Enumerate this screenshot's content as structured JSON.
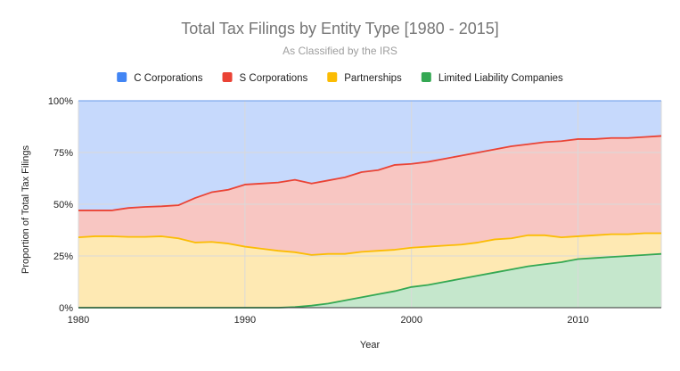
{
  "chart_data": {
    "type": "area",
    "stacked": true,
    "normalized": true,
    "title": "Total Tax Filings by Entity Type [1980 - 2015]",
    "subtitle": "As Classified by the IRS",
    "xlabel": "Year",
    "ylabel": "Proportion of Total Tax Filings",
    "xlim": [
      1980,
      2015
    ],
    "ylim": [
      0,
      1
    ],
    "x_ticks": [
      "1980",
      "1990",
      "2000",
      "2010"
    ],
    "y_ticks": [
      "0%",
      "25%",
      "50%",
      "75%",
      "100%"
    ],
    "legend_position": "top",
    "grid": true,
    "x": [
      1980,
      1981,
      1982,
      1983,
      1984,
      1985,
      1986,
      1987,
      1988,
      1989,
      1990,
      1991,
      1992,
      1993,
      1994,
      1995,
      1996,
      1997,
      1998,
      1999,
      2000,
      2001,
      2002,
      2003,
      2004,
      2005,
      2006,
      2007,
      2008,
      2009,
      2010,
      2011,
      2012,
      2013,
      2014,
      2015
    ],
    "series": [
      {
        "name": "Limited Liability Companies",
        "color": "#34a853",
        "fill": "#c5e7cc",
        "values": [
          0,
          0,
          0,
          0,
          0,
          0,
          0,
          0,
          0,
          0,
          0,
          0,
          0,
          0.003,
          0.01,
          0.02,
          0.035,
          0.05,
          0.065,
          0.08,
          0.1,
          0.11,
          0.125,
          0.14,
          0.155,
          0.17,
          0.185,
          0.2,
          0.21,
          0.22,
          0.235,
          0.24,
          0.245,
          0.25,
          0.255,
          0.26
        ]
      },
      {
        "name": "Partnerships",
        "color": "#fbbc04",
        "fill": "#fee9b3",
        "values": [
          0.34,
          0.345,
          0.345,
          0.342,
          0.342,
          0.345,
          0.335,
          0.315,
          0.318,
          0.31,
          0.295,
          0.285,
          0.275,
          0.265,
          0.245,
          0.24,
          0.225,
          0.22,
          0.21,
          0.2,
          0.19,
          0.185,
          0.175,
          0.165,
          0.16,
          0.16,
          0.15,
          0.15,
          0.14,
          0.12,
          0.11,
          0.11,
          0.11,
          0.105,
          0.105,
          0.1
        ]
      },
      {
        "name": "S Corporations",
        "color": "#ea4335",
        "fill": "#f8c6c2",
        "values": [
          0.13,
          0.125,
          0.125,
          0.14,
          0.145,
          0.145,
          0.16,
          0.215,
          0.24,
          0.26,
          0.3,
          0.315,
          0.33,
          0.35,
          0.345,
          0.355,
          0.37,
          0.385,
          0.39,
          0.41,
          0.405,
          0.41,
          0.42,
          0.43,
          0.435,
          0.435,
          0.445,
          0.44,
          0.45,
          0.465,
          0.47,
          0.465,
          0.465,
          0.465,
          0.465,
          0.47
        ]
      },
      {
        "name": "C Corporations",
        "color": "#4285f4",
        "fill": "#c6d9fc",
        "values": [
          0.53,
          0.53,
          0.53,
          0.518,
          0.513,
          0.51,
          0.505,
          0.47,
          0.442,
          0.43,
          0.405,
          0.4,
          0.395,
          0.382,
          0.4,
          0.385,
          0.37,
          0.345,
          0.335,
          0.31,
          0.305,
          0.295,
          0.28,
          0.265,
          0.25,
          0.235,
          0.22,
          0.21,
          0.2,
          0.195,
          0.185,
          0.185,
          0.18,
          0.18,
          0.175,
          0.17
        ]
      }
    ],
    "legend_order": [
      "C Corporations",
      "S Corporations",
      "Partnerships",
      "Limited Liability Companies"
    ],
    "colors": {
      "grid": "#d9d9d9",
      "axis": "#333333"
    }
  }
}
